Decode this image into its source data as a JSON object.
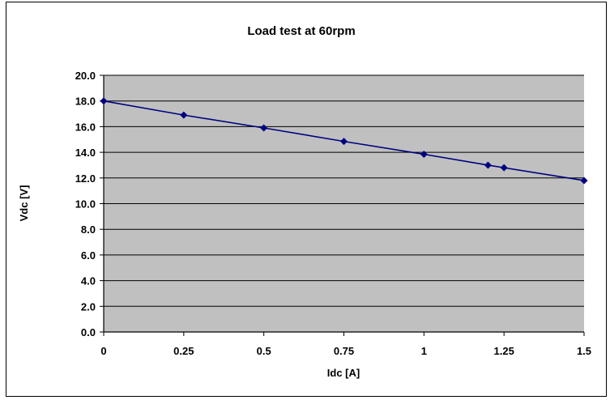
{
  "chart_data": {
    "type": "line",
    "title": "Load test at 60rpm",
    "xlabel": "Idc [A]",
    "ylabel": "Vdc [V]",
    "xlim": [
      0,
      1.5
    ],
    "ylim": [
      0,
      20
    ],
    "x_ticks": [
      0,
      0.25,
      0.5,
      0.75,
      1,
      1.25,
      1.5
    ],
    "x_tick_labels": [
      "0",
      "0.25",
      "0.5",
      "0.75",
      "1",
      "1.25",
      "1.5"
    ],
    "y_ticks": [
      0,
      2,
      4,
      6,
      8,
      10,
      12,
      14,
      16,
      18,
      20
    ],
    "y_tick_labels": [
      "0.0",
      "2.0",
      "4.0",
      "6.0",
      "8.0",
      "10.0",
      "12.0",
      "14.0",
      "16.0",
      "18.0",
      "20.0"
    ],
    "grid": "horizontal",
    "legend": "none",
    "series": [
      {
        "x": [
          0,
          0.25,
          0.5,
          0.75,
          1.0,
          1.2,
          1.25,
          1.5
        ],
        "y": [
          18.0,
          16.9,
          15.9,
          14.85,
          13.85,
          13.0,
          12.8,
          11.8
        ]
      }
    ],
    "colors": {
      "plot_area": "#c0c0c0",
      "series_line": "#000080",
      "marker": "#000080",
      "gridline": "#000000",
      "axis": "#000000"
    }
  }
}
